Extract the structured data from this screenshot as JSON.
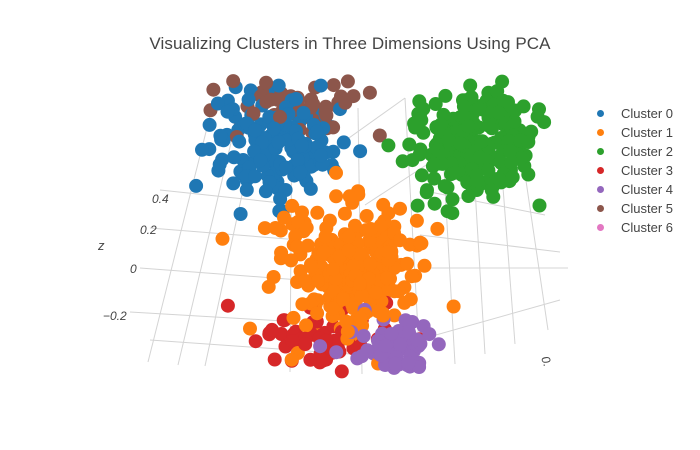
{
  "chart_data": {
    "type": "scatter",
    "title": "Visualizing Clusters in Three Dimensions Using PCA",
    "zlabel": "z",
    "z_ticks": [
      "0.4",
      "0.2",
      "0",
      "−0.2"
    ],
    "clipped_tick": "0.",
    "legend_position": "right",
    "series": [
      {
        "name": "Cluster 0",
        "color": "#1f77b4",
        "center": [
          -0.3,
          0.25,
          0.25
        ],
        "spread": [
          0.1,
          0.08,
          0.09
        ],
        "count": 160
      },
      {
        "name": "Cluster 1",
        "color": "#ff7f0e",
        "center": [
          0.02,
          -0.02,
          0.02
        ],
        "spread": [
          0.1,
          0.08,
          0.12
        ],
        "count": 260
      },
      {
        "name": "Cluster 2",
        "color": "#2ca02c",
        "center": [
          0.28,
          0.3,
          0.32
        ],
        "spread": [
          0.09,
          0.08,
          0.1
        ],
        "count": 220
      },
      {
        "name": "Cluster 3",
        "color": "#d62728",
        "center": [
          -0.02,
          -0.12,
          -0.2
        ],
        "spread": [
          0.1,
          0.06,
          0.05
        ],
        "count": 60
      },
      {
        "name": "Cluster 4",
        "color": "#9467bd",
        "center": [
          0.22,
          -0.2,
          -0.12
        ],
        "spread": [
          0.06,
          0.05,
          0.06
        ],
        "count": 70
      },
      {
        "name": "Cluster 5",
        "color": "#8c564b",
        "center": [
          -0.28,
          0.35,
          0.33
        ],
        "spread": [
          0.1,
          0.05,
          0.06
        ],
        "count": 70
      },
      {
        "name": "Cluster 6",
        "color": "#e377c2",
        "center": [
          0.0,
          0.0,
          0.0
        ],
        "spread": [
          0.0,
          0.0,
          0.0
        ],
        "count": 0
      }
    ]
  }
}
